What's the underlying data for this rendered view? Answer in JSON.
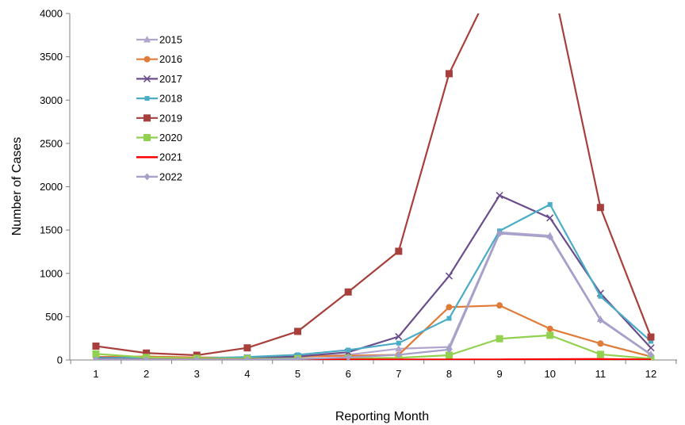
{
  "chart_data": {
    "type": "line",
    "title": "",
    "xlabel": "Reporting Month",
    "ylabel": "Number of Cases",
    "x": [
      1,
      2,
      3,
      4,
      5,
      6,
      7,
      8,
      9,
      10,
      11,
      12
    ],
    "xlim": [
      1,
      12
    ],
    "ylim": [
      0,
      4000
    ],
    "yticks": [
      0,
      500,
      1000,
      1500,
      2000,
      2500,
      3000,
      3500,
      4000
    ],
    "grid": false,
    "legend_position": "top-left",
    "series": [
      {
        "name": "2015",
        "color": "#B2A5CE",
        "marker": "triangle",
        "values": [
          10,
          15,
          15,
          20,
          35,
          60,
          130,
          150,
          1475,
          1435,
          470,
          65
        ]
      },
      {
        "name": "2016",
        "color": "#E07B39",
        "marker": "circle",
        "values": [
          35,
          40,
          30,
          25,
          40,
          50,
          60,
          610,
          630,
          360,
          190,
          40
        ]
      },
      {
        "name": "2017",
        "color": "#6A4E8C",
        "marker": "x",
        "values": [
          25,
          25,
          20,
          25,
          40,
          90,
          270,
          970,
          1900,
          1640,
          770,
          140
        ]
      },
      {
        "name": "2018",
        "color": "#4BACC6",
        "marker": "small-square",
        "values": [
          20,
          25,
          20,
          35,
          60,
          115,
          195,
          480,
          1490,
          1795,
          735,
          215
        ]
      },
      {
        "name": "2019",
        "color": "#A7403C",
        "marker": "square",
        "values": [
          160,
          80,
          55,
          140,
          330,
          785,
          1255,
          3305,
          4500,
          4500,
          1760,
          265
        ]
      },
      {
        "name": "2020",
        "color": "#92D050",
        "marker": "square",
        "values": [
          70,
          30,
          20,
          15,
          15,
          20,
          25,
          55,
          245,
          285,
          65,
          15
        ]
      },
      {
        "name": "2021",
        "color": "#FF0000",
        "marker": "none",
        "values": [
          5,
          5,
          5,
          5,
          5,
          5,
          5,
          5,
          5,
          8,
          10,
          5
        ]
      },
      {
        "name": "2022",
        "color": "#A5A0C8",
        "marker": "diamond",
        "values": [
          5,
          5,
          5,
          5,
          10,
          30,
          60,
          120,
          1460,
          1420,
          460,
          60
        ]
      }
    ]
  }
}
